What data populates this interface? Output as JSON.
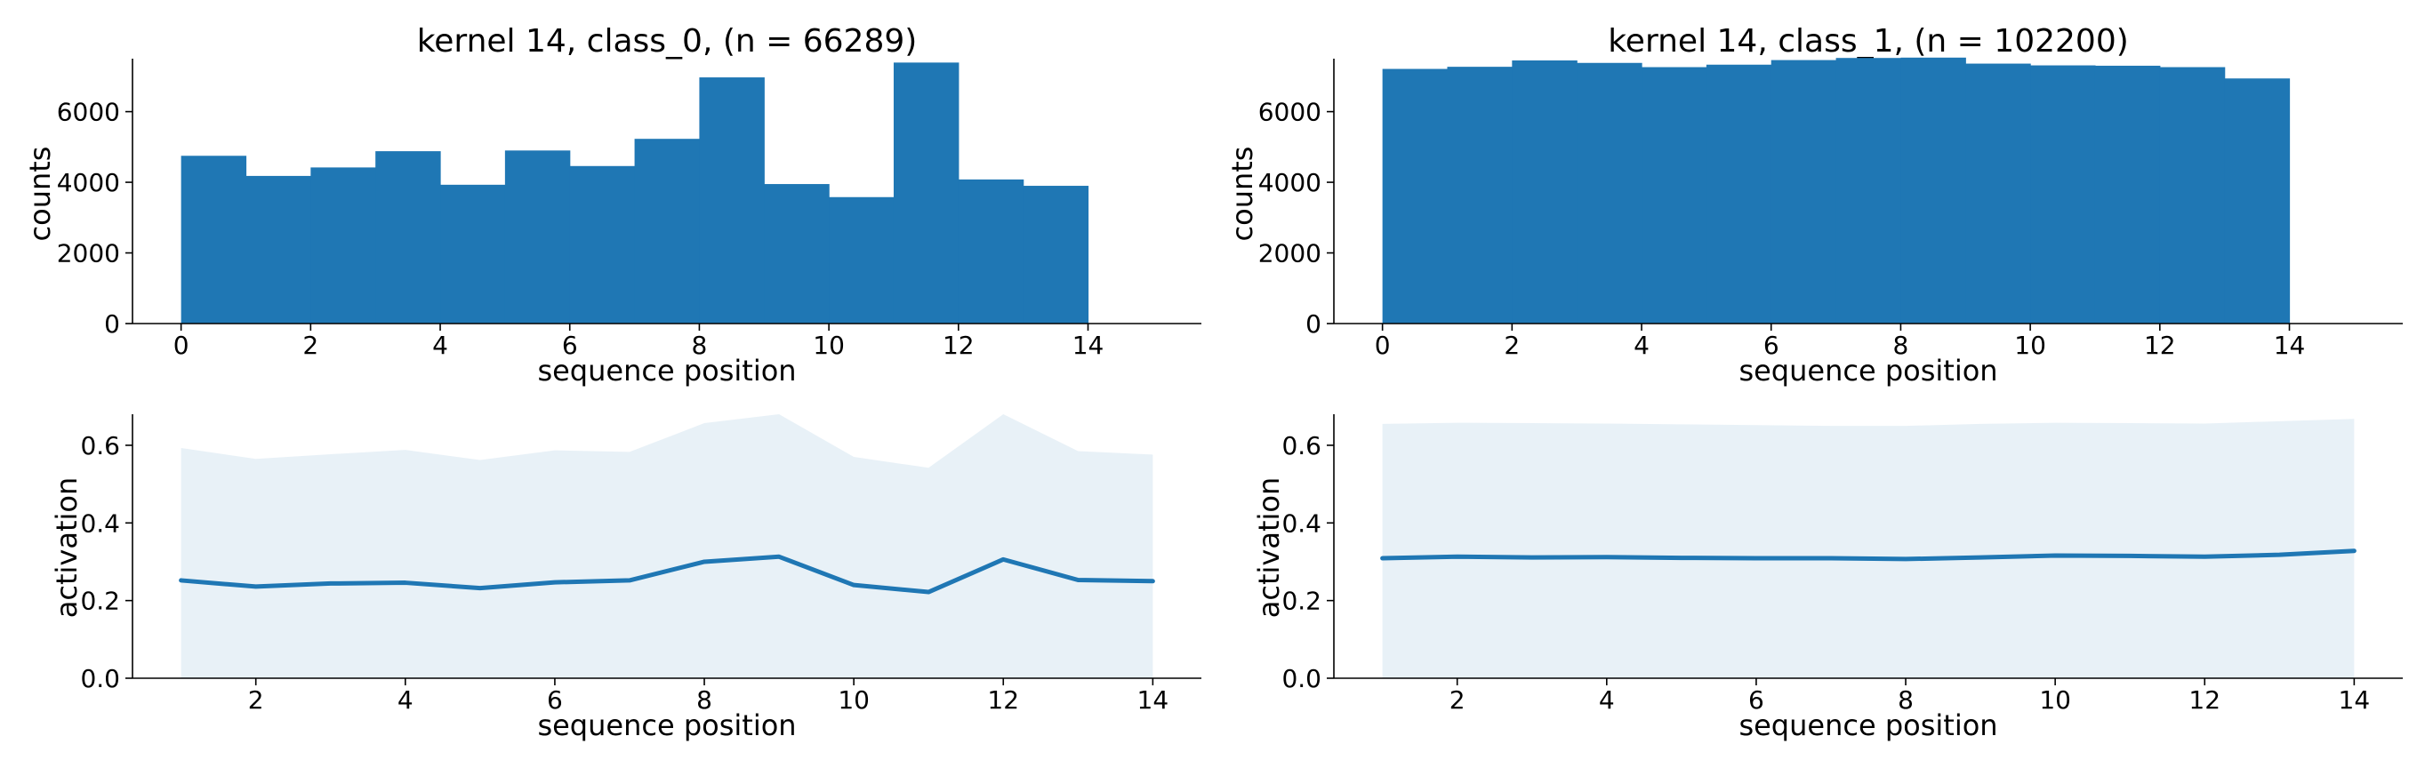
{
  "colors": {
    "bar": "#1f77b4",
    "line": "#1f77b4",
    "band": "#1f77b4"
  },
  "chart_data": [
    {
      "type": "bar",
      "title": "kernel 14, class_0, (n = 66289)",
      "xlabel": "sequence position",
      "ylabel": "counts",
      "bin_edges": [
        0,
        1,
        2,
        3,
        4,
        5,
        6,
        7,
        8,
        9,
        10,
        11,
        12,
        13,
        14
      ],
      "values": [
        4750,
        4180,
        4420,
        4880,
        3930,
        4900,
        4460,
        5230,
        6970,
        3950,
        3580,
        7390,
        4080,
        3900
      ],
      "xlim": [
        -0.75,
        15.75
      ],
      "ylim": [
        0,
        7500
      ],
      "xticks": [
        0,
        2,
        4,
        6,
        8,
        10,
        12,
        14
      ],
      "yticks": [
        0,
        2000,
        4000,
        6000
      ],
      "grid": false
    },
    {
      "type": "bar",
      "title": "kernel 14, class_1, (n = 102200)",
      "xlabel": "sequence position",
      "ylabel": "counts",
      "bin_edges": [
        0,
        1,
        2,
        3,
        4,
        5,
        6,
        7,
        8,
        9,
        10,
        11,
        12,
        13,
        14
      ],
      "values": [
        7210,
        7270,
        7450,
        7380,
        7260,
        7330,
        7460,
        7520,
        7530,
        7360,
        7310,
        7300,
        7260,
        6940
      ],
      "xlim": [
        -0.75,
        15.75
      ],
      "ylim": [
        0,
        7500
      ],
      "xticks": [
        0,
        2,
        4,
        6,
        8,
        10,
        12,
        14
      ],
      "yticks": [
        0,
        2000,
        4000,
        6000
      ],
      "grid": false
    },
    {
      "type": "area",
      "xlabel": "sequence position",
      "ylabel": "activation",
      "x": [
        1,
        2,
        3,
        4,
        5,
        6,
        7,
        8,
        9,
        10,
        11,
        12,
        13,
        14
      ],
      "series": [
        {
          "values": [
            0.252,
            0.236,
            0.244,
            0.246,
            0.232,
            0.247,
            0.252,
            0.3,
            0.313,
            0.24,
            0.222,
            0.306,
            0.253,
            0.25
          ]
        }
      ],
      "band_upper": [
        0.593,
        0.565,
        0.577,
        0.588,
        0.562,
        0.587,
        0.583,
        0.657,
        0.68,
        0.57,
        0.542,
        0.68,
        0.585,
        0.576
      ],
      "band_lower": [
        0,
        0,
        0,
        0,
        0,
        0,
        0,
        0,
        0,
        0,
        0,
        0,
        0,
        0
      ],
      "xlim": [
        0.35,
        14.65
      ],
      "ylim": [
        0,
        0.68
      ],
      "xticks": [
        2,
        4,
        6,
        8,
        10,
        12,
        14
      ],
      "yticks": [
        0.0,
        0.2,
        0.4,
        0.6
      ],
      "grid": false
    },
    {
      "type": "area",
      "xlabel": "sequence position",
      "ylabel": "activation",
      "x": [
        1,
        2,
        3,
        4,
        5,
        6,
        7,
        8,
        9,
        10,
        11,
        12,
        13,
        14
      ],
      "series": [
        {
          "values": [
            0.309,
            0.313,
            0.311,
            0.312,
            0.31,
            0.309,
            0.309,
            0.307,
            0.311,
            0.316,
            0.315,
            0.313,
            0.318,
            0.328
          ]
        }
      ],
      "band_upper": [
        0.655,
        0.658,
        0.657,
        0.656,
        0.654,
        0.652,
        0.65,
        0.65,
        0.655,
        0.658,
        0.657,
        0.656,
        0.662,
        0.668
      ],
      "band_lower": [
        0,
        0,
        0,
        0,
        0,
        0,
        0,
        0,
        0,
        0,
        0,
        0,
        0,
        0
      ],
      "xlim": [
        0.35,
        14.65
      ],
      "ylim": [
        0,
        0.68
      ],
      "xticks": [
        2,
        4,
        6,
        8,
        10,
        12,
        14
      ],
      "yticks": [
        0.0,
        0.2,
        0.4,
        0.6
      ],
      "grid": false
    }
  ]
}
